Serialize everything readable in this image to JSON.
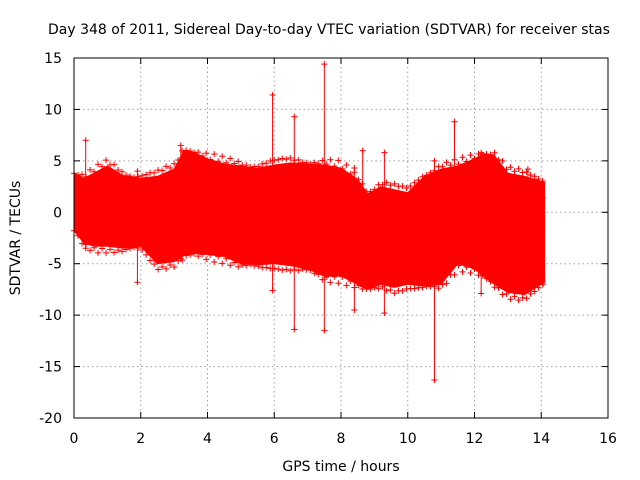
{
  "chart_data": {
    "type": "scatter",
    "title": "Day 348 of 2011, Sidereal Day-to-day VTEC variation (SDTVAR) for receiver stas",
    "xlabel": "GPS time / hours",
    "ylabel": "SDTVAR / TECUs",
    "xlim": [
      0,
      16
    ],
    "ylim": [
      -20,
      15
    ],
    "xticks": [
      0,
      2,
      4,
      6,
      8,
      10,
      12,
      14,
      16
    ],
    "yticks": [
      -20,
      -15,
      -10,
      -5,
      0,
      5,
      10,
      15
    ],
    "grid": true,
    "series": [
      {
        "name": "SDTVAR",
        "color": "#ff0000",
        "marker": "plus",
        "envelope": {
          "x": [
            0.0,
            0.3,
            0.6,
            1.0,
            1.5,
            2.0,
            2.5,
            3.0,
            3.3,
            3.6,
            4.0,
            4.5,
            5.0,
            5.5,
            6.0,
            6.5,
            7.0,
            7.5,
            8.0,
            8.5,
            8.8,
            9.2,
            9.6,
            10.0,
            10.5,
            11.0,
            11.5,
            12.0,
            12.3,
            12.6,
            13.0,
            13.5,
            14.0,
            14.1
          ],
          "upper": [
            3.8,
            3.3,
            3.8,
            4.5,
            3.5,
            3.3,
            3.5,
            4.2,
            6.0,
            5.8,
            5.2,
            4.7,
            4.5,
            4.3,
            4.6,
            4.8,
            4.7,
            4.6,
            4.3,
            3.2,
            1.8,
            2.5,
            2.2,
            1.9,
            3.5,
            4.2,
            4.5,
            5.2,
            5.7,
            5.5,
            3.8,
            3.5,
            3.0,
            2.9
          ],
          "lower": [
            -1.8,
            -3.0,
            -3.3,
            -3.3,
            -3.5,
            -3.3,
            -5.0,
            -4.8,
            -4.2,
            -4.0,
            -4.1,
            -4.3,
            -5.0,
            -5.1,
            -5.0,
            -5.2,
            -5.5,
            -6.2,
            -6.2,
            -7.0,
            -7.5,
            -7.0,
            -7.3,
            -7.0,
            -7.2,
            -7.0,
            -5.0,
            -5.5,
            -6.3,
            -7.0,
            -7.8,
            -8.0,
            -7.0,
            -6.8
          ]
        },
        "spikes": [
          {
            "x": 0.35,
            "low": -3.5,
            "high": 7.0
          },
          {
            "x": 1.9,
            "low": -6.8,
            "high": 4.0
          },
          {
            "x": 3.2,
            "low": -4.5,
            "high": 6.5
          },
          {
            "x": 5.95,
            "low": -7.6,
            "high": 11.4
          },
          {
            "x": 6.6,
            "low": -11.4,
            "high": 9.3
          },
          {
            "x": 7.5,
            "low": -11.5,
            "high": 14.4
          },
          {
            "x": 8.4,
            "low": -9.5,
            "high": 4.3
          },
          {
            "x": 8.65,
            "low": -7.2,
            "high": 6.0
          },
          {
            "x": 9.3,
            "low": -9.8,
            "high": 5.8
          },
          {
            "x": 10.8,
            "low": -16.3,
            "high": 5.0
          },
          {
            "x": 11.4,
            "low": -4.5,
            "high": 8.8
          },
          {
            "x": 12.2,
            "low": -7.9,
            "high": 5.8
          },
          {
            "x": 13.6,
            "low": -7.0,
            "high": 4.2
          },
          {
            "x": 14.05,
            "low": -7.0,
            "high": 1.4
          }
        ]
      }
    ]
  }
}
